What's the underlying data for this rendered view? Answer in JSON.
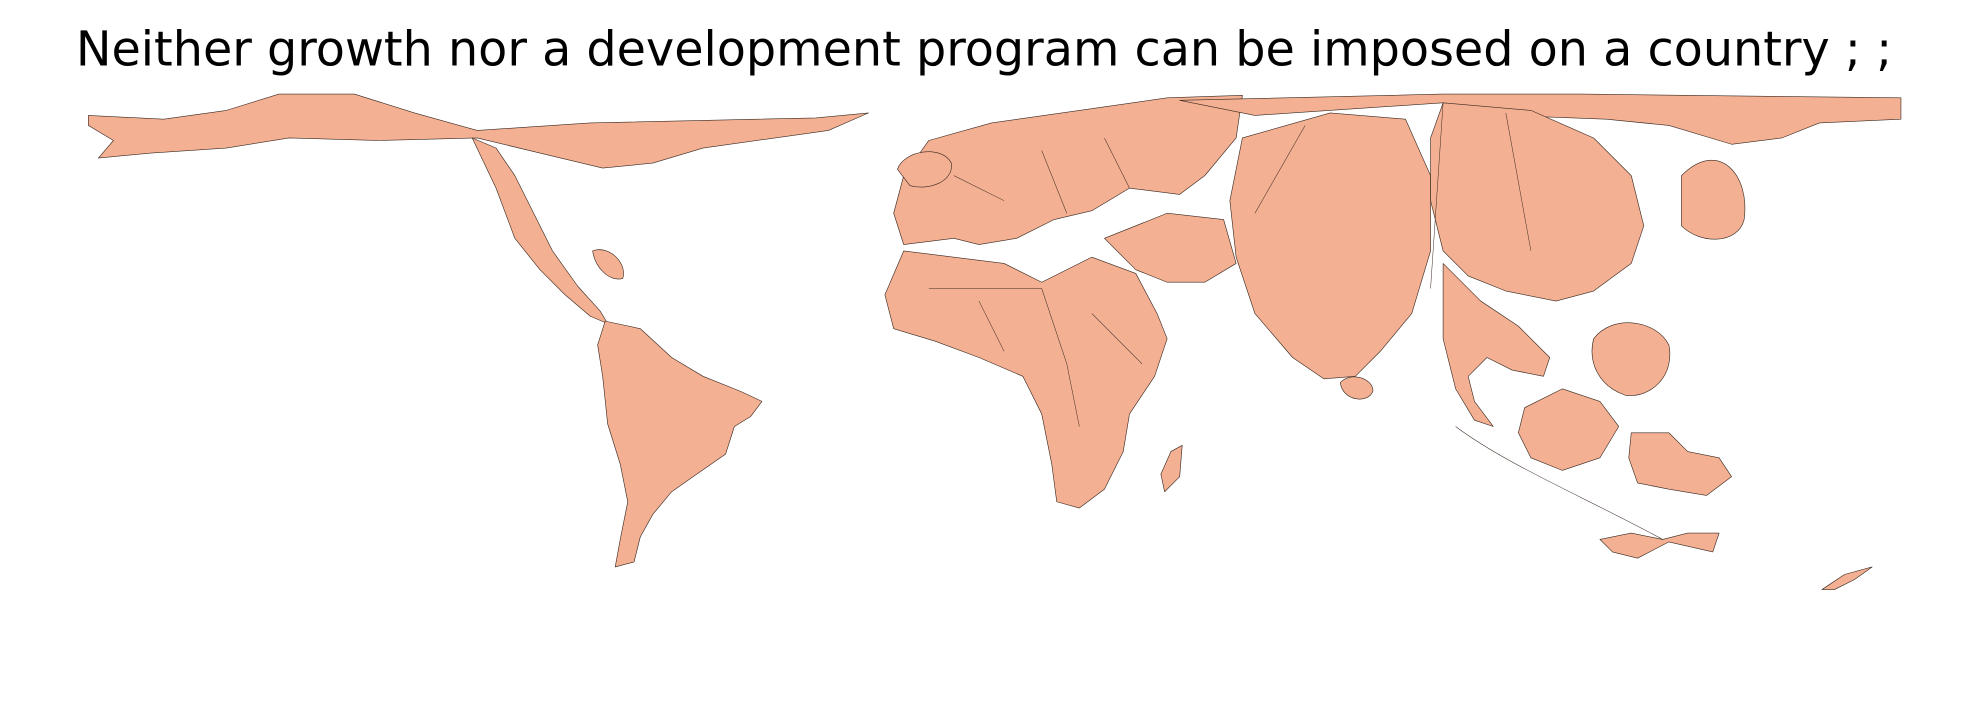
{
  "title": "Neither growth nor a development program can be imposed on a country ; ;"
}
